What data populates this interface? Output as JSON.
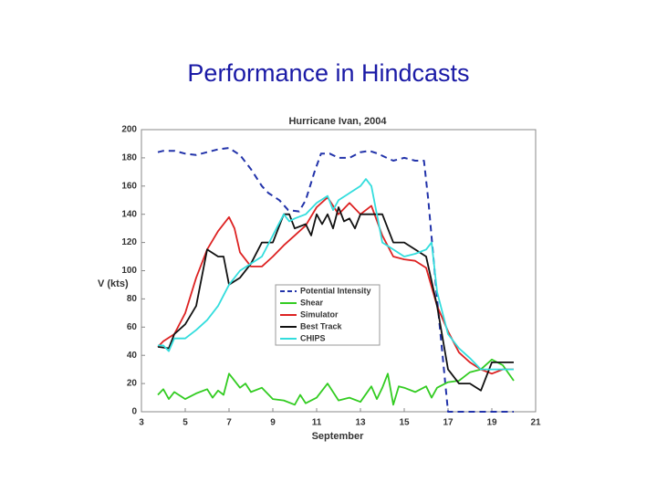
{
  "slide_title": "Performance in Hindcasts",
  "chart_data": {
    "type": "line",
    "title": "Hurricane Ivan, 2004",
    "x_label": "September",
    "y_label": "V (kts)",
    "xlim": [
      3,
      21
    ],
    "xticks": [
      3,
      5,
      7,
      9,
      11,
      13,
      15,
      17,
      19,
      21
    ],
    "ylim": [
      0,
      200
    ],
    "yticks": [
      0,
      20,
      40,
      60,
      80,
      100,
      120,
      140,
      160,
      180,
      200
    ],
    "grid": false,
    "series": [
      {
        "name": "Potential Intensity",
        "color": "#2233aa",
        "dashed": true,
        "x": [
          3.75,
          4,
          4.5,
          5,
          5.5,
          6,
          6.5,
          7,
          7.5,
          8,
          8.5,
          8.8,
          9.3,
          9.7,
          10.2,
          10.5,
          10.9,
          11.2,
          11.6,
          12,
          12.5,
          13,
          13.4,
          13.8,
          14.2,
          14.5,
          15,
          15.5,
          15.9,
          16.1,
          16.5,
          17,
          18,
          19,
          20
        ],
        "values": [
          184,
          185,
          185,
          183,
          182,
          184,
          186,
          187,
          182,
          172,
          160,
          155,
          150,
          143,
          142,
          150,
          170,
          183,
          183,
          180,
          180,
          184,
          185,
          183,
          180,
          178,
          180,
          178,
          178,
          150,
          80,
          0,
          0,
          0,
          0
        ]
      },
      {
        "name": "Shear",
        "color": "#33cc22",
        "dashed": false,
        "x": [
          3.75,
          4,
          4.25,
          4.5,
          5,
          5.5,
          6,
          6.25,
          6.5,
          6.75,
          7,
          7.5,
          7.75,
          8,
          8.5,
          9,
          9.5,
          10,
          10.25,
          10.5,
          11,
          11.5,
          12,
          12.5,
          13,
          13.5,
          13.75,
          14,
          14.25,
          14.5,
          14.75,
          15,
          15.5,
          16,
          16.25,
          16.5,
          17,
          17.5,
          18,
          18.5,
          19,
          19.5,
          20
        ],
        "values": [
          12,
          16,
          9,
          14,
          9,
          13,
          16,
          10,
          15,
          12,
          27,
          17,
          20,
          14,
          17,
          9,
          8,
          5,
          12,
          6,
          10,
          20,
          8,
          10,
          7,
          18,
          9,
          17,
          27,
          5,
          18,
          17,
          14,
          18,
          10,
          17,
          21,
          22,
          28,
          30,
          37,
          33,
          22
        ]
      },
      {
        "name": "Simulator",
        "color": "#dd2222",
        "dashed": false,
        "x": [
          3.75,
          4,
          4.5,
          5,
          5.5,
          6,
          6.5,
          7,
          7.25,
          7.5,
          8,
          8.5,
          9,
          9.5,
          10,
          10.5,
          11,
          11.5,
          11.75,
          12,
          12.5,
          13,
          13.5,
          14,
          14.5,
          15,
          15.5,
          16,
          16.5,
          17,
          17.5,
          18,
          18.5,
          19,
          19.5,
          20
        ],
        "values": [
          46,
          50,
          55,
          70,
          95,
          115,
          128,
          138,
          130,
          113,
          103,
          103,
          110,
          118,
          125,
          132,
          145,
          152,
          146,
          140,
          148,
          140,
          146,
          125,
          110,
          108,
          107,
          102,
          75,
          57,
          42,
          35,
          30,
          27,
          30,
          30
        ]
      },
      {
        "name": "Best Track",
        "color": "#111111",
        "dashed": false,
        "x": [
          3.75,
          4.25,
          4.5,
          5,
          5.5,
          6,
          6.5,
          6.75,
          7,
          7.5,
          8,
          8.5,
          9,
          9.5,
          9.75,
          10,
          10.5,
          10.75,
          11,
          11.25,
          11.5,
          11.75,
          12,
          12.25,
          12.5,
          12.75,
          13,
          13.5,
          14,
          14.25,
          14.5,
          15,
          15.5,
          16,
          16.5,
          17,
          17.5,
          18,
          18.5,
          19,
          19.5,
          20
        ],
        "values": [
          46,
          45,
          55,
          62,
          75,
          115,
          110,
          110,
          90,
          95,
          105,
          120,
          120,
          140,
          140,
          130,
          133,
          125,
          140,
          133,
          140,
          130,
          145,
          135,
          137,
          130,
          140,
          140,
          140,
          130,
          120,
          120,
          115,
          110,
          75,
          30,
          20,
          20,
          15,
          35,
          35,
          35
        ]
      },
      {
        "name": "CHIPS",
        "color": "#33dddd",
        "dashed": false,
        "x": [
          3.75,
          4,
          4.25,
          4.5,
          5,
          5.5,
          6,
          6.5,
          7,
          7.5,
          8,
          8.5,
          9,
          9.5,
          9.75,
          10,
          10.5,
          11,
          11.5,
          11.75,
          12,
          12.5,
          13,
          13.25,
          13.5,
          14,
          14.5,
          15,
          15.5,
          16,
          16.25,
          16.5,
          17,
          17.5,
          18,
          18.5,
          19,
          19.5,
          20
        ],
        "values": [
          47,
          47,
          43,
          52,
          52,
          58,
          65,
          75,
          90,
          100,
          105,
          110,
          125,
          140,
          135,
          137,
          140,
          148,
          153,
          143,
          150,
          155,
          160,
          165,
          160,
          120,
          115,
          110,
          112,
          115,
          120,
          85,
          55,
          45,
          38,
          30,
          30,
          30,
          30
        ]
      }
    ]
  }
}
